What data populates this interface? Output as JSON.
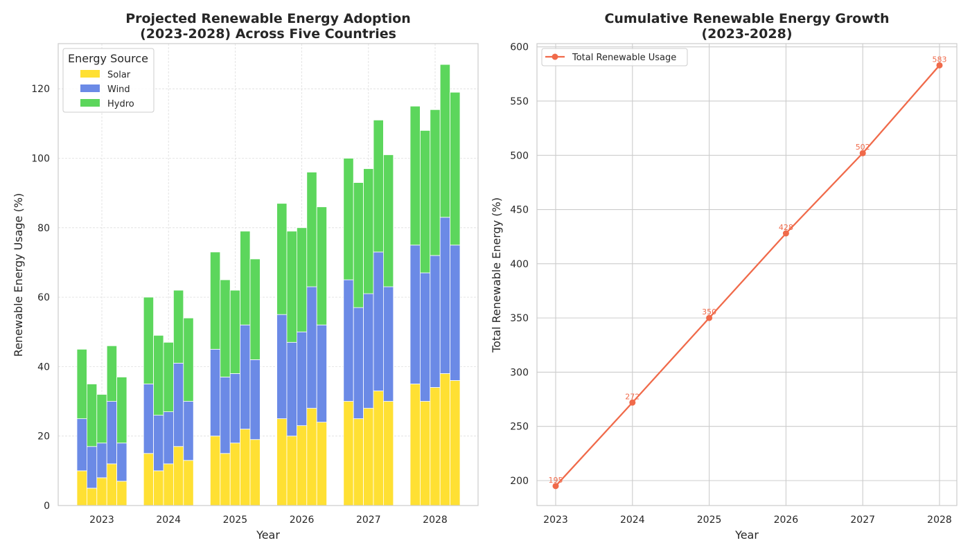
{
  "colors": {
    "solar": "#FFE033",
    "wind": "#6B8AE6",
    "hydro": "#5CD65C",
    "line": "#F06A4A"
  },
  "chart_data": [
    {
      "type": "bar",
      "stacked": true,
      "title_line1": "Projected Renewable Energy Adoption",
      "title_line2": "(2023-2028) Across Five Countries",
      "xlabel": "Year",
      "ylabel": "Renewable Energy Usage (%)",
      "ylim": [
        0,
        133
      ],
      "yticks": [
        "0",
        "20",
        "40",
        "60",
        "80",
        "100",
        "120"
      ],
      "categories": [
        "2023",
        "2024",
        "2025",
        "2026",
        "2027",
        "2028"
      ],
      "bars_per_category": 5,
      "grid": true,
      "legend": {
        "title": "Energy Source",
        "placement": "top-left"
      },
      "series": [
        {
          "name": "Solar",
          "values": [
            [
              10,
              5,
              8,
              12,
              7
            ],
            [
              15,
              10,
              12,
              17,
              13
            ],
            [
              20,
              15,
              18,
              22,
              19
            ],
            [
              25,
              20,
              23,
              28,
              24
            ],
            [
              30,
              25,
              28,
              33,
              30
            ],
            [
              35,
              30,
              34,
              38,
              36
            ]
          ]
        },
        {
          "name": "Wind",
          "values": [
            [
              15,
              12,
              10,
              18,
              11
            ],
            [
              20,
              16,
              15,
              24,
              17
            ],
            [
              25,
              22,
              20,
              30,
              23
            ],
            [
              30,
              27,
              27,
              35,
              28
            ],
            [
              35,
              32,
              33,
              40,
              33
            ],
            [
              40,
              37,
              38,
              45,
              39
            ]
          ]
        },
        {
          "name": "Hydro",
          "values": [
            [
              20,
              18,
              14,
              16,
              19
            ],
            [
              25,
              23,
              20,
              21,
              24
            ],
            [
              28,
              28,
              24,
              27,
              29
            ],
            [
              32,
              32,
              30,
              33,
              34
            ],
            [
              35,
              36,
              36,
              38,
              38
            ],
            [
              40,
              41,
              42,
              44,
              44
            ]
          ]
        }
      ]
    },
    {
      "type": "line",
      "title_line1": "Cumulative Renewable Energy Growth",
      "title_line2": "(2023-2028)",
      "xlabel": "Year",
      "ylabel": "Total Renewable Energy (%)",
      "ylim": [
        177,
        603
      ],
      "yticks": [
        "200",
        "250",
        "300",
        "350",
        "400",
        "450",
        "500",
        "550",
        "600"
      ],
      "x": [
        "2023",
        "2024",
        "2025",
        "2026",
        "2027",
        "2028"
      ],
      "grid": true,
      "legend": {
        "placement": "top-left"
      },
      "series": [
        {
          "name": "Total Renewable Usage",
          "values": [
            195,
            272,
            350,
            428,
            502,
            583
          ]
        }
      ],
      "point_labels": [
        "195",
        "272",
        "350",
        "428",
        "502",
        "583"
      ]
    }
  ]
}
